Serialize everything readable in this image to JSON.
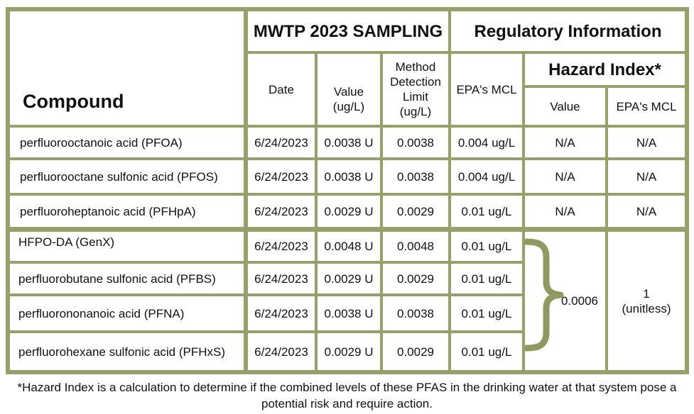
{
  "headers": {
    "compound": "Compound",
    "sampling": "MWTP 2023 SAMPLING",
    "regulatory": "Regulatory Information",
    "hazard_index": "Hazard Index*",
    "date": "Date",
    "value": "Value\n(ug/L)",
    "mdl": "Method\nDetection\nLimit\n(ug/L)",
    "epa_mcl": "EPA's MCL",
    "hi_value": "Value",
    "hi_epa_mcl": "EPA's MCL"
  },
  "rows": [
    {
      "compound": "perfluorooctanoic acid (PFOA)",
      "date": "6/24/2023",
      "value": "0.0038 U",
      "mdl": "0.0038",
      "mcl": "0.004 ug/L",
      "hi_value": "N/A",
      "hi_mcl": "N/A"
    },
    {
      "compound": "perfluorooctane sulfonic acid (PFOS)",
      "date": "6/24/2023",
      "value": "0.0038 U",
      "mdl": "0.0038",
      "mcl": "0.004 ug/L",
      "hi_value": "N/A",
      "hi_mcl": "N/A"
    },
    {
      "compound": "perfluoroheptanoic acid (PFHpA)",
      "date": "6/24/2023",
      "value": "0.0029 U",
      "mdl": "0.0029",
      "mcl": "0.01 ug/L",
      "hi_value": "N/A",
      "hi_mcl": "N/A"
    },
    {
      "compound": "HFPO-DA (GenX)",
      "date": "6/24/2023",
      "value": "0.0048 U",
      "mdl": "0.0048",
      "mcl": "0.01 ug/L"
    },
    {
      "compound": "perfluorobutane sulfonic acid (PFBS)",
      "date": "6/24/2023",
      "value": "0.0029 U",
      "mdl": "0.0029",
      "mcl": "0.01 ug/L"
    },
    {
      "compound": "perfluorononanoic acid (PFNA)",
      "date": "6/24/2023",
      "value": "0.0038 U",
      "mdl": "0.0038",
      "mcl": "0.01 ug/L"
    },
    {
      "compound": "perfluorohexane sulfonic acid (PFHxS)",
      "date": "6/24/2023",
      "value": "0.0029 U",
      "mdl": "0.0029",
      "mcl": "0.01 ug/L"
    }
  ],
  "hazard_group": {
    "value": "0.0006",
    "mcl": "1\n(unitless)"
  },
  "footnote": "*Hazard Index is a calculation to determine if the combined levels of these PFAS in the drinking water at that system pose a potential risk and require action.",
  "colors": {
    "border": "#97a06a",
    "bracket": "#8f9a63"
  }
}
